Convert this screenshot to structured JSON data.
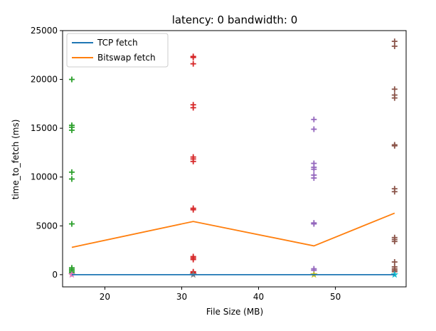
{
  "chart_data": {
    "type": "line",
    "title": "latency: 0 bandwidth: 0",
    "xlabel": "File Size (MB)",
    "ylabel": "time_to_fetch (ms)",
    "xlim": [
      14.5,
      59.2
    ],
    "ylim": [
      -1250,
      25000
    ],
    "x_ticks": [
      20,
      30,
      40,
      50
    ],
    "y_ticks": [
      0,
      5000,
      10000,
      15000,
      20000,
      25000
    ],
    "x_tick_labels": [
      "20",
      "30",
      "40",
      "50"
    ],
    "y_tick_labels": [
      "0",
      "5000",
      "10000",
      "15000",
      "20000",
      "25000"
    ],
    "legend_position": "top-left",
    "grid": false,
    "series": [
      {
        "name": "TCP fetch",
        "color": "#1f77b4",
        "x": [
          15.7,
          31.5,
          47.2,
          57.7
        ],
        "y": [
          0,
          0,
          0,
          0
        ]
      },
      {
        "name": "Bitswap fetch",
        "color": "#ff7f0e",
        "x": [
          15.7,
          31.5,
          47.2,
          57.7
        ],
        "y": [
          2800,
          5450,
          2950,
          6300
        ]
      }
    ],
    "scatter": [
      {
        "color": "#2ca02c",
        "marker": "+",
        "x": 15.7,
        "y": [
          20000,
          15300,
          15100,
          14800,
          10500,
          9800,
          5200,
          700,
          550,
          400,
          250,
          100
        ]
      },
      {
        "color": "#d62728",
        "marker": "+",
        "x": 31.5,
        "y": [
          22350,
          22250,
          21600,
          17400,
          17100,
          12050,
          11850,
          11600,
          6800,
          6650,
          1850,
          1700,
          1550,
          300,
          200
        ]
      },
      {
        "color": "#9467bd",
        "marker": "+",
        "x": 47.2,
        "y": [
          15900,
          14900,
          11400,
          11000,
          10800,
          10200,
          9900,
          5300,
          5200,
          600,
          450
        ]
      },
      {
        "color": "#8c564b",
        "marker": "+",
        "x": 57.7,
        "y": [
          23900,
          23400,
          19000,
          18400,
          18100,
          13300,
          13200,
          8800,
          8500,
          3800,
          3600,
          3400,
          1300,
          800,
          600,
          450,
          300
        ]
      },
      {
        "color": "#e377c2",
        "marker": "*",
        "x": 15.7,
        "y": [
          0
        ]
      },
      {
        "color": "#7f7f7f",
        "marker": "*",
        "x": 31.5,
        "y": [
          0
        ]
      },
      {
        "color": "#bcbd22",
        "marker": "*",
        "x": 47.2,
        "y": [
          0
        ]
      },
      {
        "color": "#17becf",
        "marker": "*",
        "x": 57.7,
        "y": [
          0
        ]
      }
    ]
  }
}
